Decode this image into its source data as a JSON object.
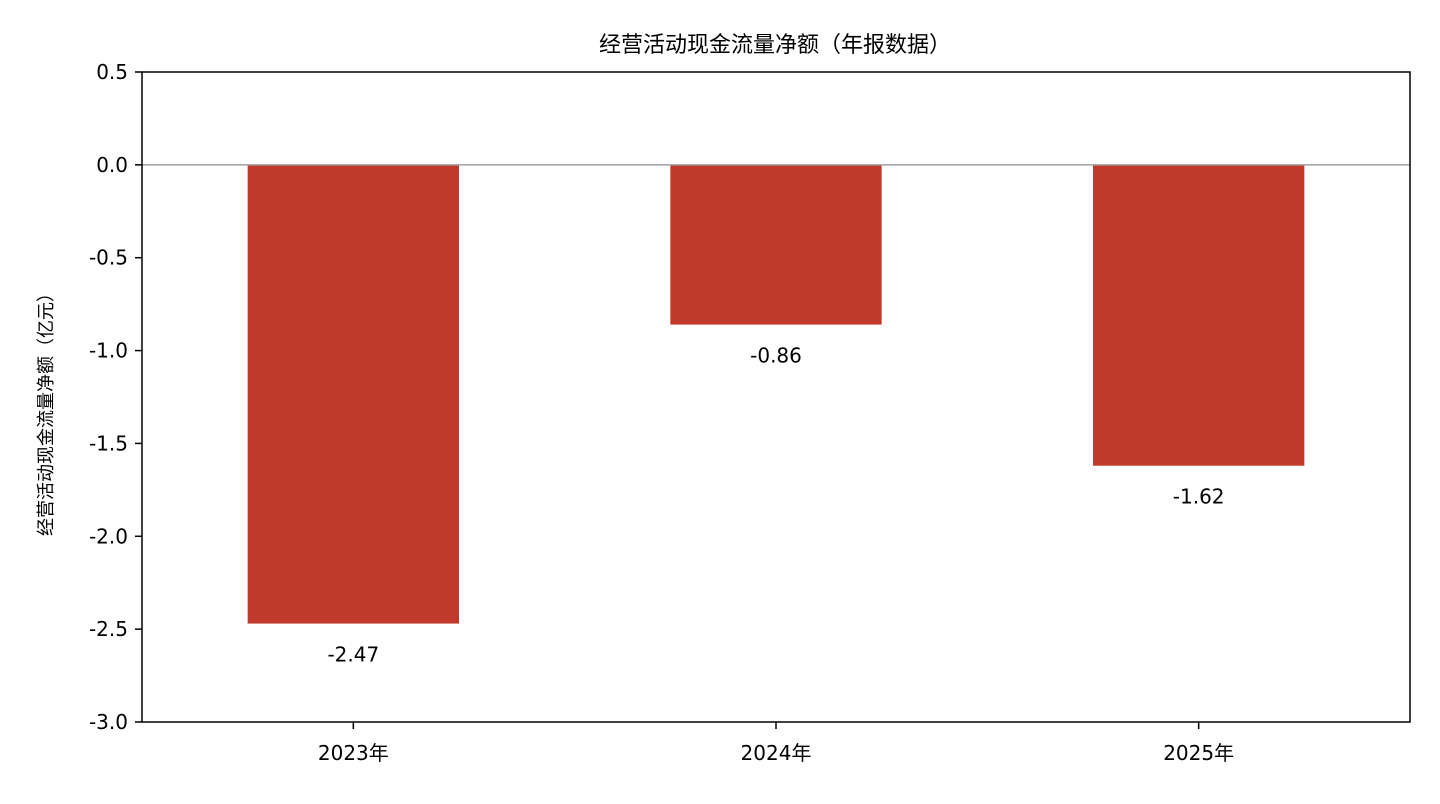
{
  "chart_data": {
    "type": "bar",
    "title": "经营活动现金流量净额（年报数据）",
    "xlabel": "",
    "ylabel": "经营活动现金流量净额（亿元）",
    "categories": [
      "2023年",
      "2024年",
      "2025年"
    ],
    "values": [
      -2.47,
      -0.86,
      -1.62
    ],
    "data_labels": [
      "-2.47",
      "-0.86",
      "-1.62"
    ],
    "ylim": [
      -3.0,
      0.5
    ],
    "yticks": [
      0.5,
      0.0,
      -0.5,
      -1.0,
      -1.5,
      -2.0,
      -2.5,
      -3.0
    ],
    "ytick_labels": [
      "0.5",
      "0.0",
      "-0.5",
      "-1.0",
      "-1.5",
      "-2.0",
      "-2.5",
      "-3.0"
    ],
    "zero_line": true,
    "grid": false,
    "legend": "none",
    "bar_color": "#c0392b",
    "zero_line_color": "#a0a0a0"
  }
}
